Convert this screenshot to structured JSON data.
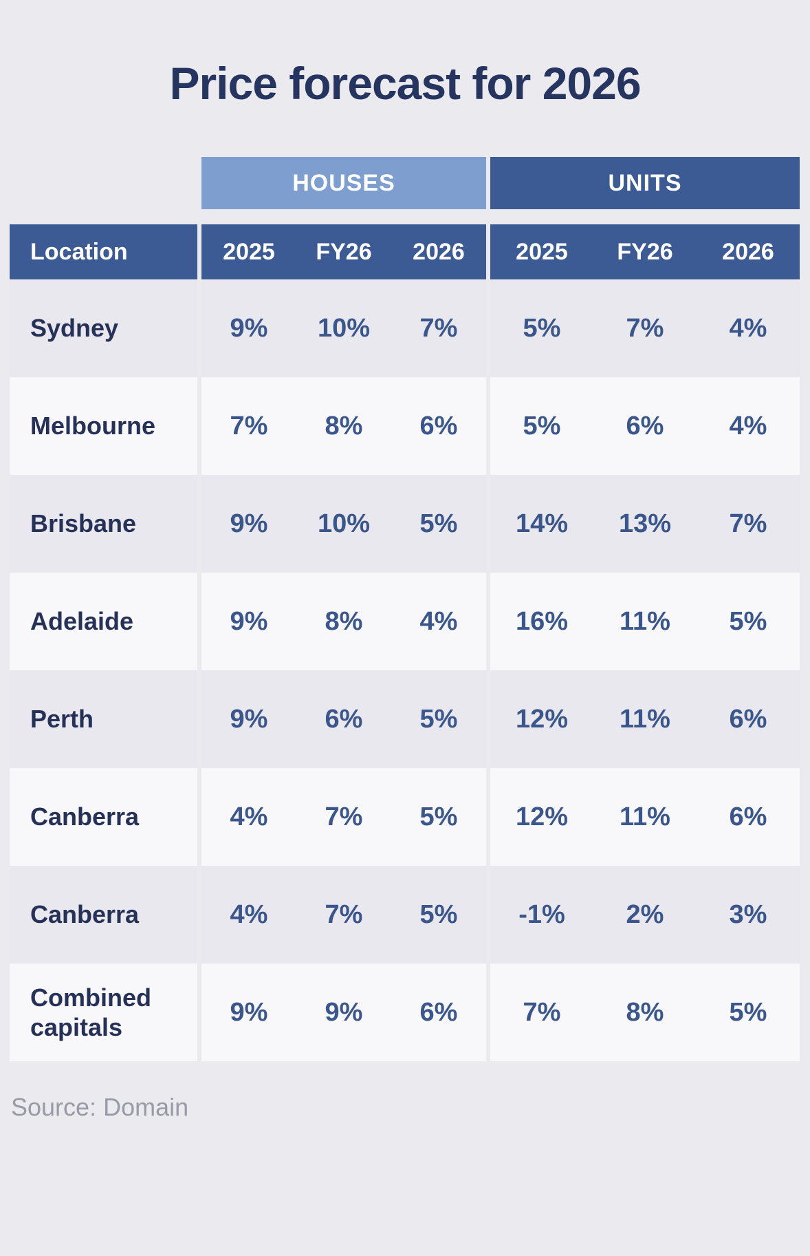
{
  "title": "Price forecast for 2026",
  "source": "Source: Domain",
  "table": {
    "location_header": "Location",
    "groups": [
      {
        "label": "HOUSES",
        "columns": [
          "2025",
          "FY26",
          "2026"
        ]
      },
      {
        "label": "UNITS",
        "columns": [
          "2025",
          "FY26",
          "2026"
        ]
      }
    ]
  },
  "colors": {
    "page_background": "#ebebef",
    "title_text": "#263560",
    "houses_banner": "#7e9ed0",
    "units_banner": "#3c5a94",
    "header_row_background": "#3c5a94",
    "header_text": "#ffffff",
    "row_shaded": "#e8e8ee",
    "row_plain": "#f8f8fb",
    "value_text": "#3a568b",
    "location_text": "#263157",
    "source_text": "#989aa6"
  },
  "chart_data": {
    "type": "table",
    "title": "Price forecast for 2026",
    "row_header": "Location",
    "column_groups": [
      {
        "group": "HOUSES",
        "columns": [
          "2025",
          "FY26",
          "2026"
        ]
      },
      {
        "group": "UNITS",
        "columns": [
          "2025",
          "FY26",
          "2026"
        ]
      }
    ],
    "columns": [
      "Location",
      "Houses 2025",
      "Houses FY26",
      "Houses 2026",
      "Units 2025",
      "Units FY26",
      "Units 2026"
    ],
    "rows": [
      [
        "Sydney",
        "9%",
        "10%",
        "7%",
        "5%",
        "7%",
        "4%"
      ],
      [
        "Melbourne",
        "7%",
        "8%",
        "6%",
        "5%",
        "6%",
        "4%"
      ],
      [
        "Brisbane",
        "9%",
        "10%",
        "5%",
        "14%",
        "13%",
        "7%"
      ],
      [
        "Adelaide",
        "9%",
        "8%",
        "4%",
        "16%",
        "11%",
        "5%"
      ],
      [
        "Perth",
        "9%",
        "6%",
        "5%",
        "12%",
        "11%",
        "6%"
      ],
      [
        "Canberra",
        "4%",
        "7%",
        "5%",
        "12%",
        "11%",
        "6%"
      ],
      [
        "Canberra",
        "4%",
        "7%",
        "5%",
        "-1%",
        "2%",
        "3%"
      ],
      [
        "Combined capitals",
        "9%",
        "9%",
        "6%",
        "7%",
        "8%",
        "5%"
      ]
    ],
    "source": "Source: Domain"
  }
}
